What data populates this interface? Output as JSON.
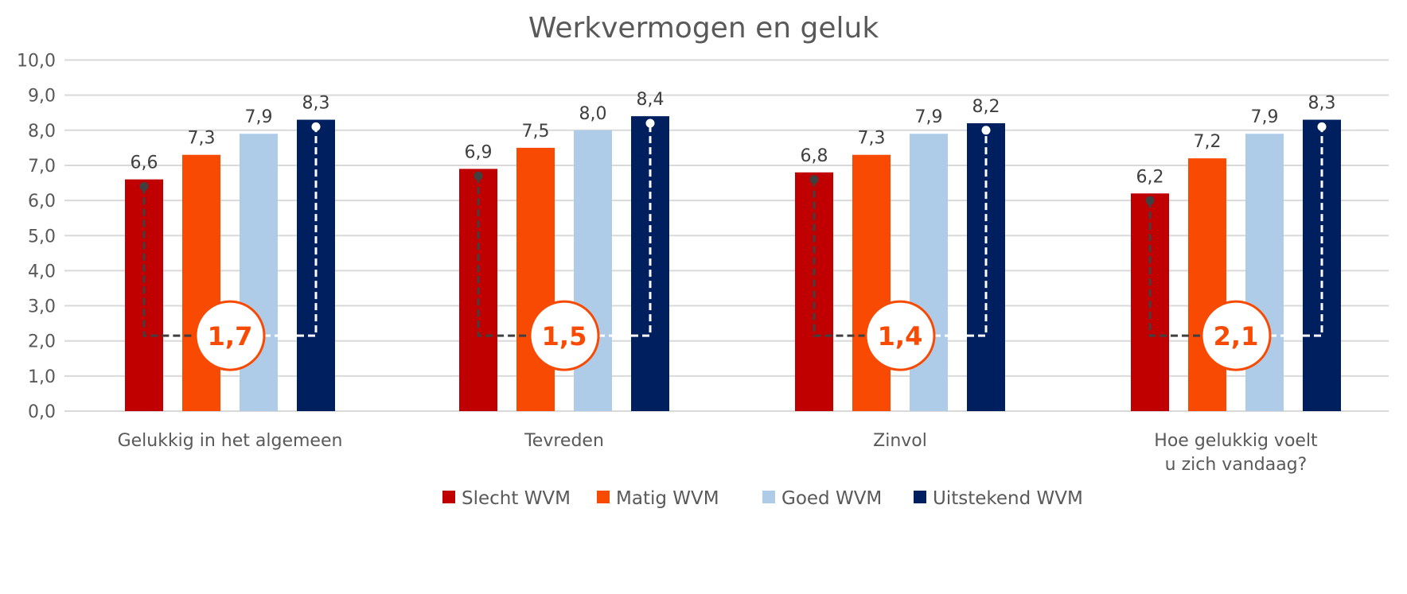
{
  "chart_data": {
    "type": "bar",
    "title": "Werkvermogen en geluk",
    "xlabel": "",
    "ylabel": "",
    "ylim": [
      0,
      10
    ],
    "yticks": [
      "0,0",
      "1,0",
      "2,0",
      "3,0",
      "4,0",
      "5,0",
      "6,0",
      "7,0",
      "8,0",
      "9,0",
      "10,0"
    ],
    "grid": true,
    "legend_position": "bottom",
    "categories": [
      [
        "Gelukkig in het algemeen"
      ],
      [
        "Tevreden"
      ],
      [
        "Zinvol"
      ],
      [
        "Hoe gelukkig voelt",
        "u zich vandaag?"
      ]
    ],
    "series": [
      {
        "name": "Slecht WVM",
        "color": "#C00000",
        "values": [
          6.6,
          6.9,
          6.8,
          6.2
        ],
        "labels": [
          "6,6",
          "6,9",
          "6,8",
          "6,2"
        ]
      },
      {
        "name": "Matig WVM",
        "color": "#F84A03",
        "values": [
          7.3,
          7.5,
          7.3,
          7.2
        ],
        "labels": [
          "7,3",
          "7,5",
          "7,3",
          "7,2"
        ]
      },
      {
        "name": "Goed WVM",
        "color": "#AECBE7",
        "values": [
          7.9,
          8.0,
          7.9,
          7.9
        ],
        "labels": [
          "7,9",
          "8,0",
          "7,9",
          "7,9"
        ]
      },
      {
        "name": "Uitstekend WVM",
        "color": "#001F5F",
        "values": [
          8.3,
          8.4,
          8.2,
          8.3
        ],
        "labels": [
          "8,3",
          "8,4",
          "8,2",
          "8,3"
        ]
      }
    ],
    "annotations": {
      "description_values": [
        1.7,
        1.5,
        1.4,
        2.1
      ],
      "labels": [
        "1,7",
        "1,5",
        "1,4",
        "2,1"
      ],
      "color": "#F84A03"
    }
  }
}
